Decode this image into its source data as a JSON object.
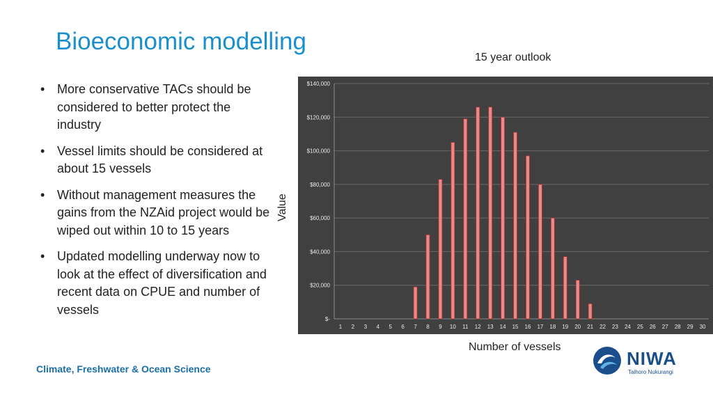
{
  "slide": {
    "title": "Bioeconomic modelling",
    "bullets": [
      "More conservative TACs should be considered to better protect the industry",
      "Vessel limits should be considered at about 15 vessels",
      "Without management measures the gains from the NZAid project would be wiped out within 10 to 15 years",
      "Updated modelling underway now to look at the effect of diversification and recent data on CPUE and number of vessels"
    ],
    "footer": "Climate, Freshwater & Ocean Science",
    "logo": {
      "name": "NIWA",
      "subtitle": "Taihoro Nukurangi",
      "icon": "niwa-wave-icon"
    },
    "bullet_char": "•"
  },
  "chart_data": {
    "type": "bar",
    "title": "15 year outlook",
    "xlabel": "Number of vessels",
    "ylabel": "Value",
    "categories": [
      "1",
      "2",
      "3",
      "4",
      "5",
      "6",
      "7",
      "8",
      "9",
      "10",
      "11",
      "12",
      "13",
      "14",
      "15",
      "16",
      "17",
      "18",
      "19",
      "20",
      "21",
      "22",
      "23",
      "24",
      "25",
      "26",
      "27",
      "28",
      "29",
      "30"
    ],
    "values": [
      0,
      0,
      0,
      0,
      0,
      0,
      19000,
      50000,
      83000,
      105000,
      119000,
      126000,
      126000,
      120000,
      111000,
      97000,
      80000,
      60000,
      37000,
      23000,
      9000,
      0,
      0,
      0,
      0,
      0,
      0,
      0,
      0,
      0
    ],
    "ylim": [
      0,
      140000
    ],
    "yticks": [
      "$-",
      "$20,000",
      "$40,000",
      "$60,000",
      "$80,000",
      "$100,000",
      "$120,000",
      "$140,000"
    ],
    "ytick_values": [
      0,
      20000,
      40000,
      60000,
      80000,
      100000,
      120000,
      140000
    ],
    "grid": true,
    "colors": {
      "background": "#404040",
      "bar": "#e88a8a",
      "bar_edge": "#b03030",
      "grid": "#6a6a6a",
      "text": "#e8e8e8"
    }
  }
}
